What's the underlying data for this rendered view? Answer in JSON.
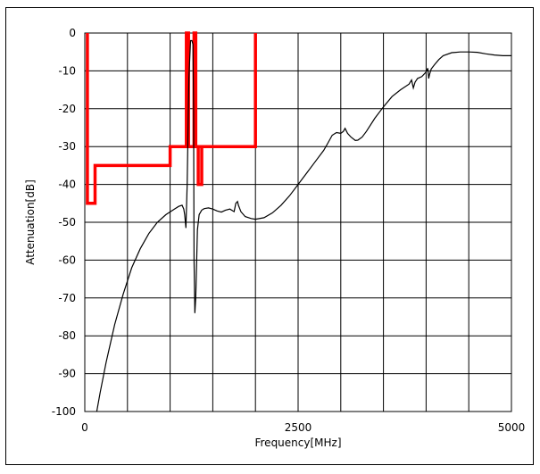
{
  "chart_data": {
    "type": "line",
    "title": "",
    "xlabel": "Frequency[MHz]",
    "ylabel": "Attenuation[dB]",
    "xlim": [
      0,
      5000
    ],
    "ylim": [
      -100,
      0
    ],
    "x_ticks": [
      0,
      2500,
      5000
    ],
    "y_ticks": [
      0,
      -10,
      -20,
      -30,
      -40,
      -50,
      -60,
      -70,
      -80,
      -90,
      -100
    ],
    "grid": true,
    "grid_x_step": 500,
    "grid_y_step": 10,
    "colors": {
      "measured": "#000000",
      "mask": "#ff0000"
    },
    "series": [
      {
        "kind": "mask",
        "x": [
          30,
          30,
          120,
          120,
          1000,
          1000,
          1190,
          1190,
          1215,
          1215,
          1190,
          1190,
          1215,
          1215,
          1280,
          1280,
          1300,
          1300,
          1330,
          1330,
          1370,
          1370,
          1330,
          1330,
          2000,
          2000
        ],
        "values": [
          0,
          -45,
          -45,
          -35,
          -35,
          -30,
          -30,
          0,
          0,
          -30,
          -30,
          0,
          0,
          -30,
          -30,
          0,
          0,
          -30,
          -30,
          -40,
          -40,
          -30,
          -30,
          -30,
          -30,
          0
        ]
      },
      {
        "kind": "measured",
        "x": [
          140,
          180,
          250,
          350,
          450,
          550,
          650,
          750,
          850,
          950,
          1050,
          1100,
          1140,
          1160,
          1170,
          1185,
          1200,
          1220,
          1240,
          1255,
          1268,
          1275,
          1280,
          1290,
          1300,
          1320,
          1340,
          1370,
          1400,
          1450,
          1500,
          1550,
          1600,
          1650,
          1700,
          1750,
          1770,
          1790,
          1800,
          1830,
          1880,
          1950,
          2000,
          2100,
          2200,
          2300,
          2400,
          2500,
          2600,
          2700,
          2800,
          2850,
          2900,
          2950,
          3000,
          3030,
          3050,
          3080,
          3120,
          3170,
          3200,
          3250,
          3300,
          3400,
          3500,
          3600,
          3700,
          3800,
          3830,
          3850,
          3870,
          3900,
          3950,
          4000,
          4020,
          4030,
          4040,
          4060,
          4100,
          4150,
          4200,
          4300,
          4400,
          4500,
          4600,
          4700,
          4800,
          4900,
          5000
        ],
        "values": [
          -100,
          -95,
          -87,
          -77,
          -69,
          -62,
          -57,
          -53,
          -50,
          -48,
          -46.5,
          -45.8,
          -45.5,
          -46.5,
          -48,
          -51.5,
          -40,
          -12,
          -2,
          -2,
          -3,
          -20,
          -60,
          -74,
          -70,
          -52,
          -48,
          -46.8,
          -46.4,
          -46.2,
          -46.5,
          -47,
          -47.3,
          -46.8,
          -46.5,
          -47.2,
          -45,
          -44.5,
          -45.5,
          -47.2,
          -48.5,
          -49,
          -49.2,
          -48.8,
          -47.5,
          -45.5,
          -43,
          -40,
          -37,
          -34,
          -31,
          -29,
          -27,
          -26.3,
          -26.5,
          -26,
          -25.2,
          -26.5,
          -27.5,
          -28.4,
          -28.3,
          -27.5,
          -26,
          -22.5,
          -19.5,
          -16.8,
          -15,
          -13.5,
          -12.4,
          -14.5,
          -13,
          -12,
          -11.5,
          -10.3,
          -9.3,
          -12,
          -11,
          -9.5,
          -8.3,
          -7,
          -6,
          -5.2,
          -5,
          -5,
          -5.1,
          -5.5,
          -5.8,
          -6,
          -6
        ]
      }
    ]
  }
}
